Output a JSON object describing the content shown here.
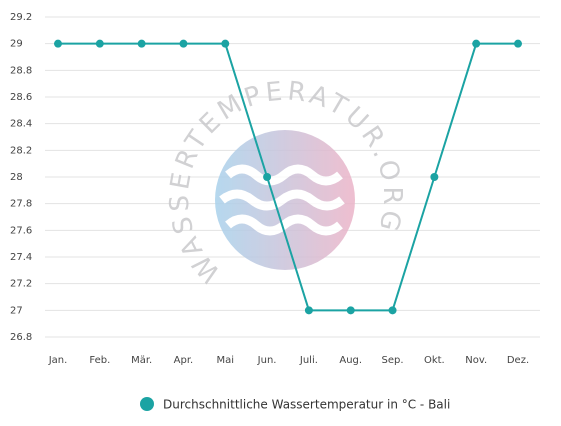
{
  "chart_data": {
    "type": "line",
    "watermark": "WASSERTEMPERATUR.ORG",
    "categories": [
      "Jan.",
      "Feb.",
      "Mär.",
      "Apr.",
      "Mai",
      "Jun.",
      "Juli.",
      "Aug.",
      "Sep.",
      "Okt.",
      "Nov.",
      "Dez."
    ],
    "series": [
      {
        "name": "Durchschnittliche Wassertemperatur in °C - Bali",
        "color": "#1ba3a3",
        "values": [
          29,
          29,
          29,
          29,
          29,
          28,
          27,
          27,
          27,
          28,
          29,
          29
        ]
      }
    ],
    "ylim": [
      26.8,
      29.2
    ],
    "yticks": [
      26.8,
      27,
      27.2,
      27.4,
      27.6,
      27.8,
      28,
      28.2,
      28.4,
      28.6,
      28.8,
      29,
      29.2
    ],
    "grid": true
  }
}
